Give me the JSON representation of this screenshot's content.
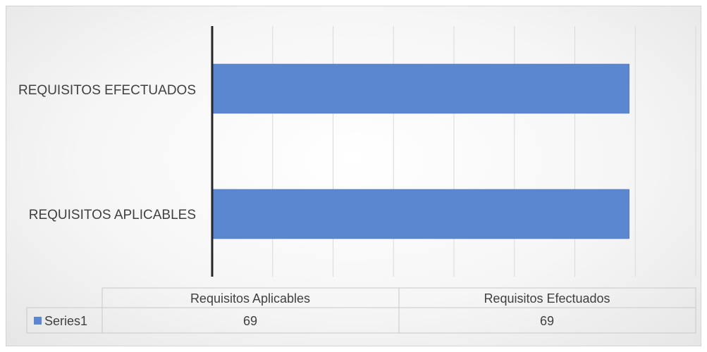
{
  "chart_data": {
    "type": "bar",
    "orientation": "horizontal",
    "categories": [
      "REQUISITOS APLICABLES",
      "REQUISITOS EFECTUADOS"
    ],
    "series": [
      {
        "name": "Series1",
        "values": [
          69,
          69
        ],
        "color": "#5b86d0"
      }
    ],
    "xlim": [
      0,
      80
    ],
    "grid": true,
    "data_table": {
      "headers": [
        "Requisitos Aplicables",
        "Requisitos Efectuados"
      ],
      "rows": [
        {
          "series": "Series1",
          "values": [
            "69",
            "69"
          ]
        }
      ]
    }
  }
}
